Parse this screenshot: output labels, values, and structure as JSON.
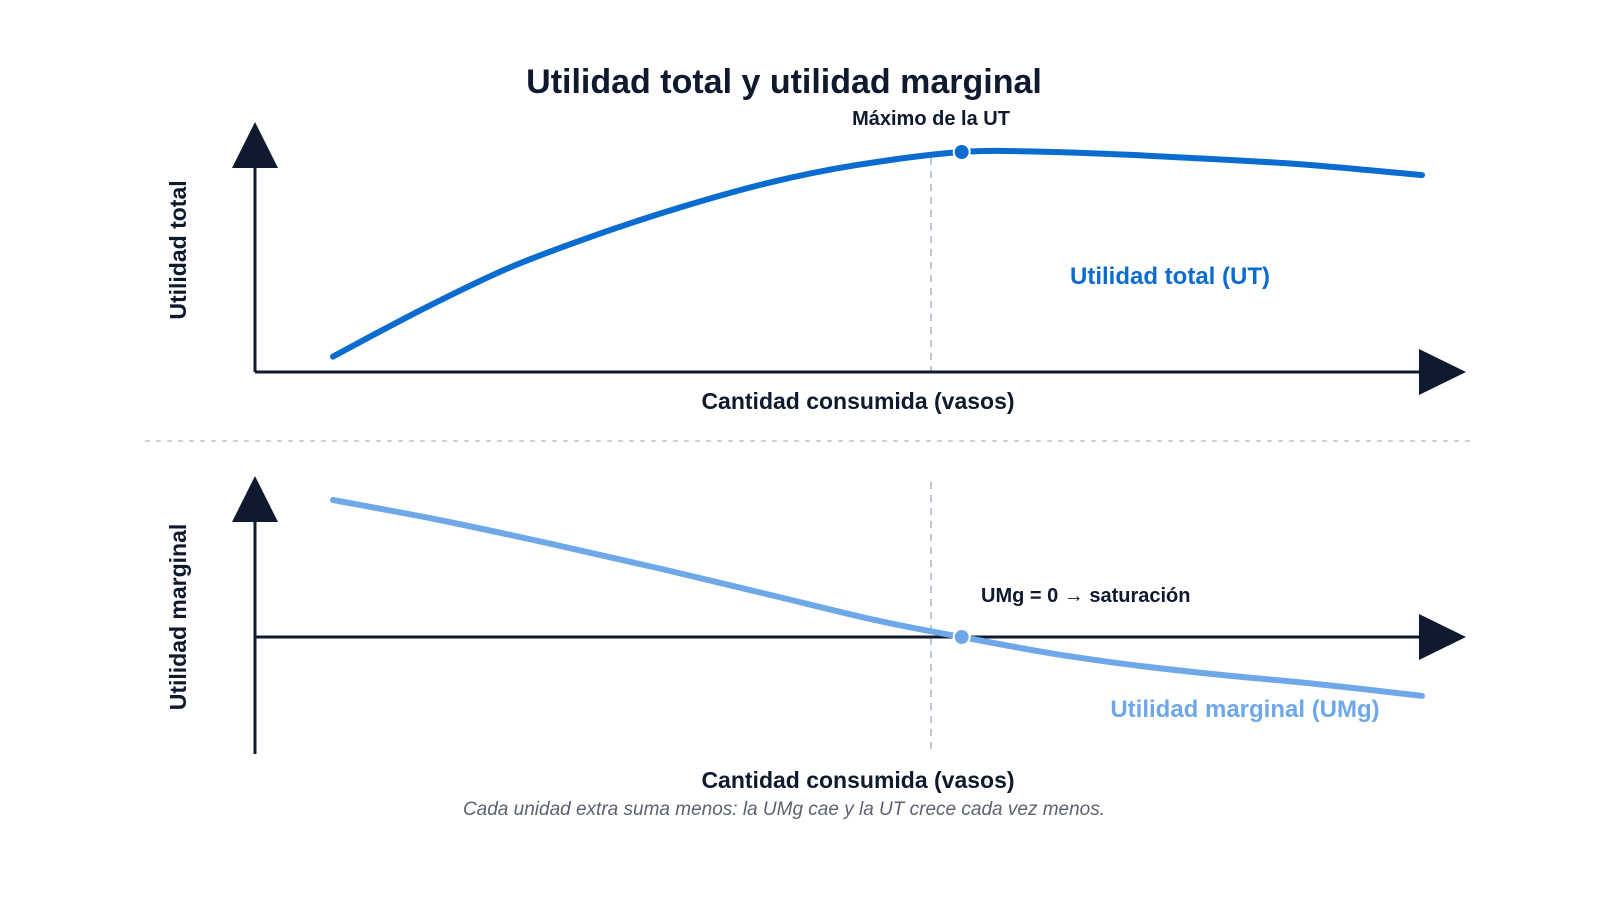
{
  "title": "Utilidad total y utilidad marginal",
  "caption": "Cada unidad extra suma menos: la UMg cae y la UT crece cada vez menos.",
  "colors": {
    "axis": "#0f1a2e",
    "ut": "#0a6ccf",
    "umg": "#6fa8e8",
    "guide": "#b9c7d6",
    "separator": "#c9d0d8"
  },
  "top_panel": {
    "y_label": "Utilidad total",
    "x_label": "Cantidad consumida (vasos)",
    "series_label": "Utilidad total (UT)",
    "peak_label": "Máximo de la UT"
  },
  "bottom_panel": {
    "y_label": "Utilidad marginal",
    "x_label": "Cantidad consumida (vasos)",
    "series_label": "Utilidad marginal (UMg)",
    "zero_label": "UMg = 0 → saturación"
  },
  "chart_data": {
    "type": "line",
    "x_start": 0,
    "x_end": 1,
    "peak_x": 0.5773,
    "series": [
      {
        "name": "Utilidad total (UT)",
        "x": [
          0,
          0.08,
          0.16,
          0.24,
          0.32,
          0.4,
          0.48,
          0.5773,
          0.66,
          0.74,
          0.82,
          0.9,
          1.0
        ],
        "values": [
          0.07,
          0.28,
          0.47,
          0.62,
          0.75,
          0.86,
          0.94,
          1.0,
          1.0,
          0.985,
          0.965,
          0.94,
          0.895
        ]
      },
      {
        "name": "Utilidad marginal (UMg)",
        "x": [
          0,
          0.1,
          0.2,
          0.3,
          0.4,
          0.5,
          0.5773,
          0.66,
          0.74,
          0.82,
          0.9,
          1.0
        ],
        "values": [
          1.0,
          0.85,
          0.68,
          0.5,
          0.31,
          0.12,
          0.0,
          -0.12,
          -0.21,
          -0.28,
          -0.34,
          -0.43
        ]
      }
    ]
  }
}
